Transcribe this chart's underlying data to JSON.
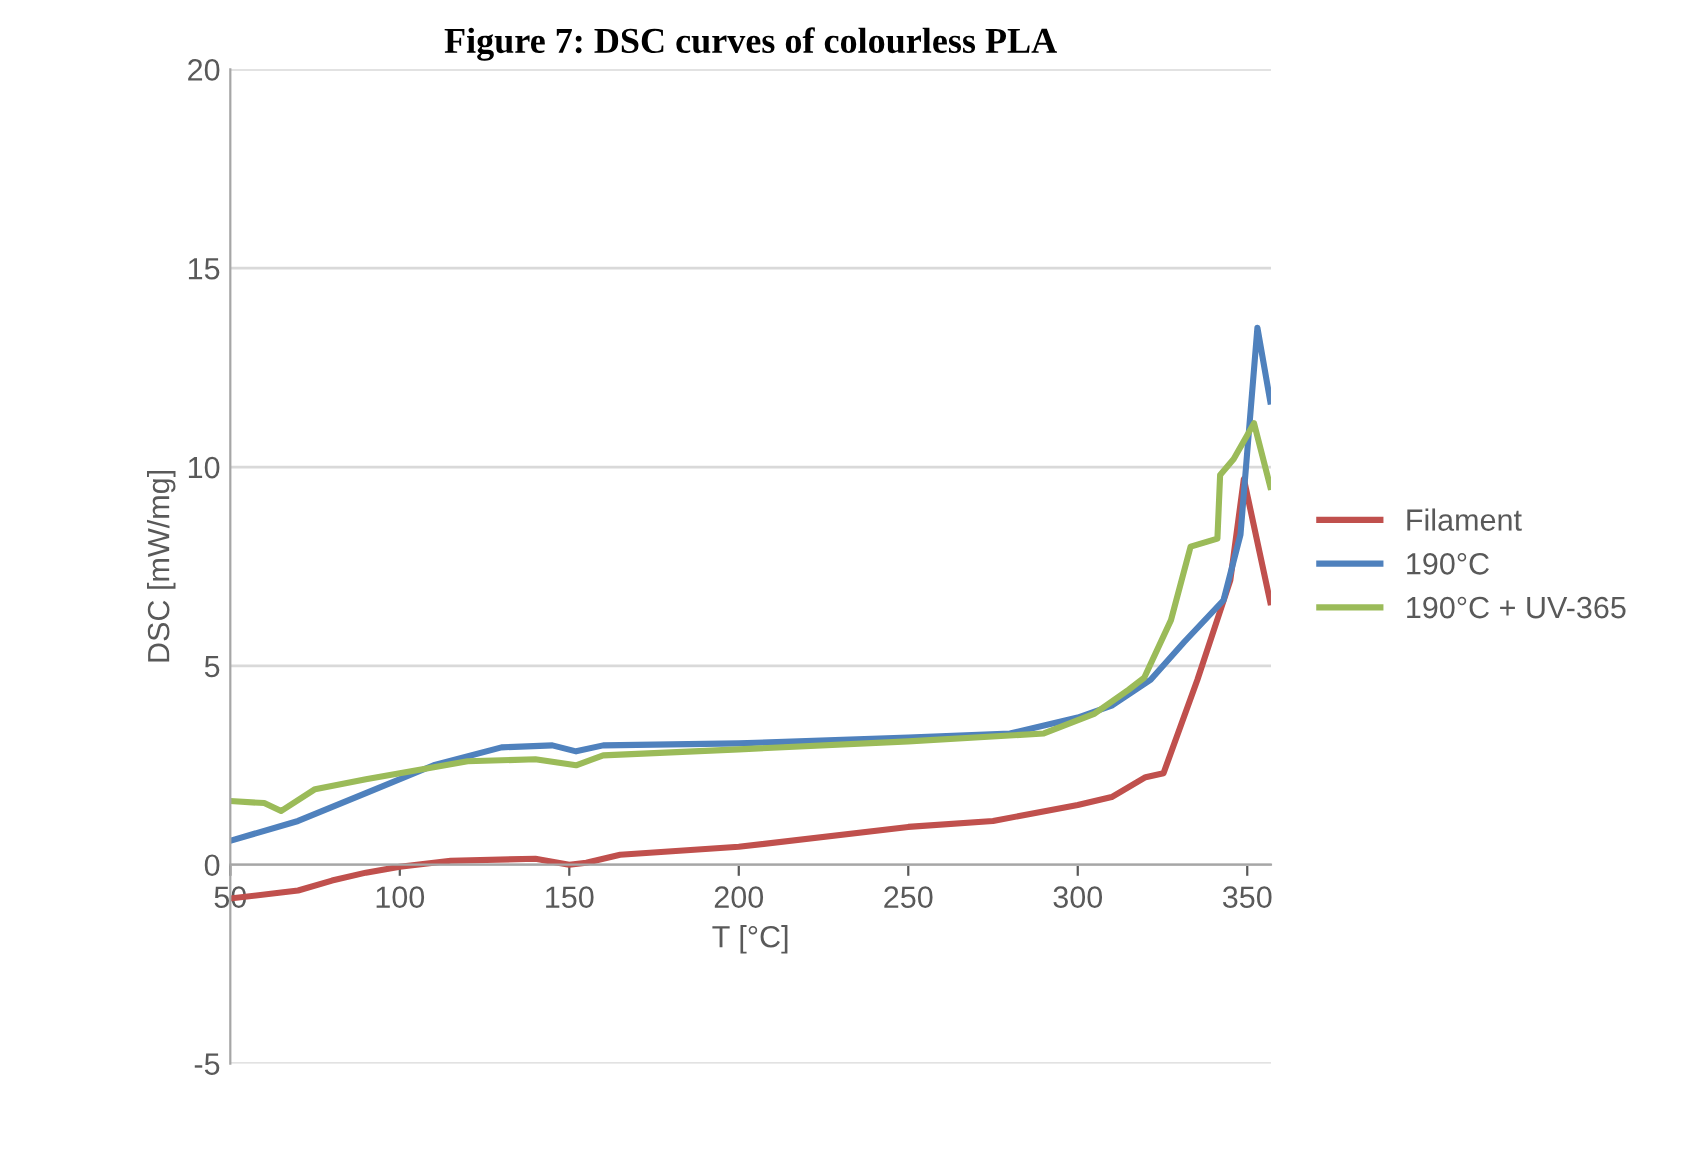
{
  "chart_data": {
    "type": "line",
    "title": "Figure 7: DSC curves of colourless PLA",
    "xlabel": "T [°C]",
    "ylabel": "DSC [mW/mg]",
    "xlim": [
      50,
      357
    ],
    "xticks": [
      50,
      100,
      150,
      200,
      250,
      300,
      350
    ],
    "ylim": [
      -5,
      20
    ],
    "yticks": [
      -5,
      0,
      5,
      10,
      15,
      20
    ],
    "grid": "y",
    "legend": "right",
    "marker": "none",
    "line_style": "solid",
    "series": [
      {
        "name": "Filament",
        "color": "#c0504d",
        "x": [
          50,
          65,
          70,
          80,
          90,
          100,
          115,
          140,
          150,
          155,
          165,
          200,
          250,
          275,
          300,
          310,
          320,
          325.3,
          335.3,
          345,
          349,
          356.8
        ],
        "values": [
          -0.85,
          -0.7,
          -0.65,
          -0.4,
          -0.2,
          -0.05,
          0.1,
          0.15,
          0.0,
          0.05,
          0.25,
          0.45,
          0.95,
          1.1,
          1.5,
          1.7,
          2.2,
          2.3,
          4.65,
          7.15,
          9.7,
          6.6
        ]
      },
      {
        "name": "190°C",
        "color": "#4f81bd",
        "x": [
          50,
          70,
          90,
          110,
          130,
          145,
          152,
          160,
          200,
          250,
          280,
          300,
          310,
          321.5,
          331.4,
          343,
          348,
          353,
          356.8
        ],
        "values": [
          0.6,
          1.1,
          1.8,
          2.5,
          2.95,
          3.0,
          2.85,
          3.0,
          3.05,
          3.2,
          3.3,
          3.7,
          4.0,
          4.65,
          5.6,
          6.65,
          8.3,
          13.5,
          11.65
        ]
      },
      {
        "name": "190°C + UV-365",
        "color": "#9bbb59",
        "x": [
          50,
          60,
          65,
          75,
          90,
          100,
          120,
          140,
          152,
          160,
          200,
          250,
          290,
          305,
          315,
          319.6,
          327.5,
          333.3,
          341.2,
          342,
          346,
          352,
          356.8
        ],
        "values": [
          1.6,
          1.55,
          1.35,
          1.9,
          2.15,
          2.3,
          2.6,
          2.65,
          2.5,
          2.75,
          2.9,
          3.1,
          3.3,
          3.8,
          4.4,
          4.7,
          6.15,
          8.0,
          8.2,
          9.8,
          10.2,
          11.1,
          9.5
        ]
      }
    ]
  }
}
